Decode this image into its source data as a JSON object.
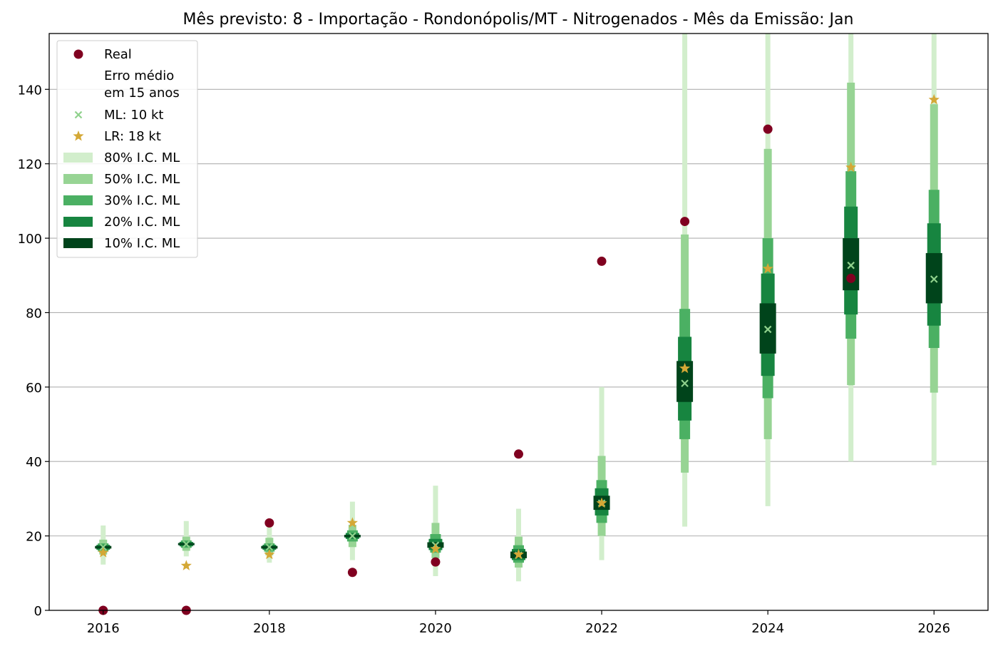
{
  "chart_data": {
    "type": "interval-plot",
    "title": "Mês previsto: 8 - Importação - Rondonópolis/MT - Nitrogenados - Mês da Emissão: Jan",
    "xlabel": "",
    "ylabel": "",
    "xlim": [
      2015.35,
      2026.65
    ],
    "ylim": [
      0,
      155
    ],
    "x_ticks": [
      "2016",
      "2018",
      "2020",
      "2022",
      "2024",
      "2026"
    ],
    "y_ticks": [
      "0",
      "20",
      "40",
      "60",
      "80",
      "100",
      "120",
      "140"
    ],
    "grid": "horizontal",
    "legend_position": "top-left",
    "legend": [
      {
        "label": "Real",
        "marker": "circle",
        "color": "#800020"
      },
      {
        "label": "Erro médio\nem 15 anos",
        "marker": "none",
        "color": "#ffffff"
      },
      {
        "label": "ML: 10 kt",
        "marker": "x",
        "color": "#8fd18c"
      },
      {
        "label": "LR: 18 kt",
        "marker": "star",
        "color": "#d4a836"
      },
      {
        "label": "80% I.C. ML",
        "marker": "band",
        "color": "#d2eecc"
      },
      {
        "label": "50% I.C. ML",
        "marker": "band",
        "color": "#97d494"
      },
      {
        "label": "30% I.C. ML",
        "marker": "band",
        "color": "#4bb063"
      },
      {
        "label": "20% I.C. ML",
        "marker": "band",
        "color": "#178540"
      },
      {
        "label": "10% I.C. ML",
        "marker": "band",
        "color": "#00441b"
      }
    ],
    "colors": {
      "real": "#800020",
      "ml": "#8fd18c",
      "lr": "#d4a836",
      "ci80": "#d2eecc",
      "ci50": "#97d494",
      "ci30": "#4bb063",
      "ci20": "#178540",
      "ci10": "#00441b",
      "grid": "#b0b0b0"
    },
    "series": [
      {
        "year": 2016,
        "real": 0,
        "ml": 17,
        "lr": 15.5,
        "ci80": [
          12.3,
          22.8
        ],
        "ci50": [
          15.0,
          19.0
        ],
        "ci30": [
          15.8,
          18.0
        ],
        "ci20": [
          16.3,
          17.6
        ],
        "ci10": [
          16.6,
          17.3
        ]
      },
      {
        "year": 2017,
        "real": 0,
        "ml": 17.8,
        "lr": 12,
        "ci80": [
          14.5,
          24.0
        ],
        "ci50": [
          16.0,
          19.8
        ],
        "ci30": [
          16.8,
          18.8
        ],
        "ci20": [
          17.2,
          18.4
        ],
        "ci10": [
          17.5,
          18.1
        ]
      },
      {
        "year": 2018,
        "real": 23.5,
        "ml": 17,
        "lr": 15,
        "ci80": [
          12.8,
          22.5
        ],
        "ci50": [
          14.8,
          19.5
        ],
        "ci30": [
          15.8,
          18.0
        ],
        "ci20": [
          16.3,
          17.6
        ],
        "ci10": [
          16.6,
          17.3
        ]
      },
      {
        "year": 2019,
        "real": 10.2,
        "ml": 20,
        "lr": 23.5,
        "ci80": [
          13.5,
          29.2
        ],
        "ci50": [
          17.0,
          23.0
        ],
        "ci30": [
          18.5,
          21.5
        ],
        "ci20": [
          19.2,
          20.8
        ],
        "ci10": [
          19.6,
          20.3
        ]
      },
      {
        "year": 2020,
        "real": 13,
        "ml": 17.5,
        "lr": 16.5,
        "ci80": [
          9.2,
          33.5
        ],
        "ci50": [
          14.0,
          23.5
        ],
        "ci30": [
          15.5,
          20.5
        ],
        "ci20": [
          16.2,
          19.2
        ],
        "ci10": [
          16.8,
          18.3
        ]
      },
      {
        "year": 2021,
        "real": 42,
        "ml": 14.8,
        "lr": 15,
        "ci80": [
          7.8,
          27.3
        ],
        "ci50": [
          11.5,
          19.8
        ],
        "ci30": [
          12.8,
          17.5
        ],
        "ci20": [
          13.5,
          16.5
        ],
        "ci10": [
          14.0,
          15.8
        ]
      },
      {
        "year": 2022,
        "real": 93.8,
        "ml": 28.8,
        "lr": 28.8,
        "ci80": [
          13.5,
          60.0
        ],
        "ci50": [
          20.0,
          41.5
        ],
        "ci30": [
          23.5,
          35.0
        ],
        "ci20": [
          25.5,
          32.8
        ],
        "ci10": [
          27.0,
          30.8
        ]
      },
      {
        "year": 2023,
        "real": 104.5,
        "ml": 61,
        "lr": 65,
        "ci80": [
          22.5,
          155
        ],
        "ci50": [
          37.0,
          101.0
        ],
        "ci30": [
          46.0,
          81.0
        ],
        "ci20": [
          51.0,
          73.5
        ],
        "ci10": [
          56.0,
          67.0
        ]
      },
      {
        "year": 2024,
        "real": 129.3,
        "ml": 75.5,
        "lr": 91.8,
        "ci80": [
          28.0,
          155
        ],
        "ci50": [
          46.0,
          124.0
        ],
        "ci30": [
          57.0,
          100.0
        ],
        "ci20": [
          63.0,
          90.5
        ],
        "ci10": [
          69.0,
          82.5
        ]
      },
      {
        "year": 2025,
        "real": 89.2,
        "ml": 92.7,
        "lr": 119,
        "ci80": [
          40.0,
          155
        ],
        "ci50": [
          60.5,
          141.8
        ],
        "ci30": [
          73.0,
          118.0
        ],
        "ci20": [
          79.5,
          108.5
        ],
        "ci10": [
          86.0,
          100.0
        ]
      },
      {
        "year": 2026,
        "real": null,
        "ml": 89,
        "lr": 137.2,
        "ci80": [
          39.0,
          155
        ],
        "ci50": [
          58.5,
          136.0
        ],
        "ci30": [
          70.5,
          113.0
        ],
        "ci20": [
          76.5,
          104.0
        ],
        "ci10": [
          82.5,
          96.0
        ]
      }
    ]
  }
}
